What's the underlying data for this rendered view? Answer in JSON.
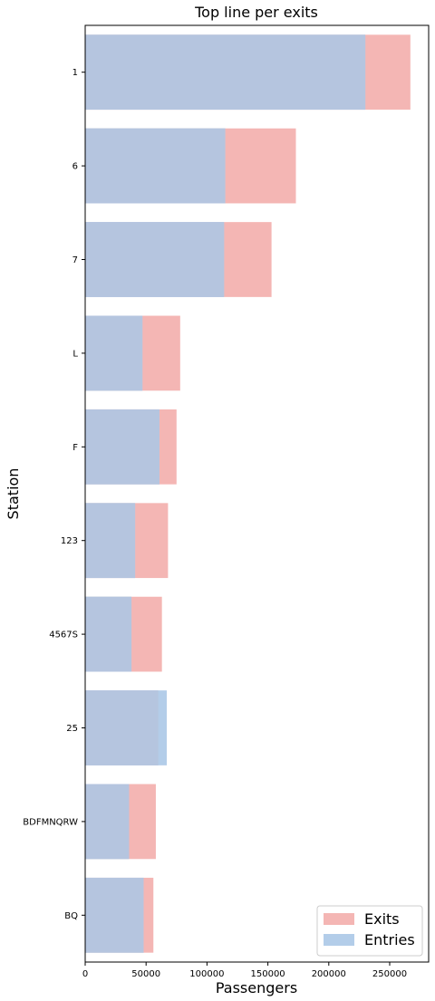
{
  "chart_data": {
    "type": "bar",
    "orientation": "horizontal",
    "title": "Top line per exits",
    "xlabel": "Passengers",
    "ylabel": "Station",
    "xlim": [
      0,
      282000
    ],
    "xticks": [
      0,
      50000,
      100000,
      150000,
      200000,
      250000
    ],
    "categories": [
      "1",
      "6",
      "7",
      "L",
      "F",
      "123",
      "4567S",
      "25",
      "BDFMNQRW",
      "BQ"
    ],
    "series": [
      {
        "name": "Exits",
        "color": "#f4b6b4",
        "values": [
          267000,
          173000,
          153000,
          78000,
          75000,
          68000,
          63000,
          60000,
          58000,
          56000
        ]
      },
      {
        "name": "Entries",
        "color": "#b3cde9",
        "values": [
          230000,
          115000,
          114000,
          47000,
          61000,
          41000,
          38000,
          67000,
          36000,
          48000
        ]
      }
    ],
    "overlap_color": "#b5c5df",
    "legend_position": "lower right",
    "grid": false
  }
}
